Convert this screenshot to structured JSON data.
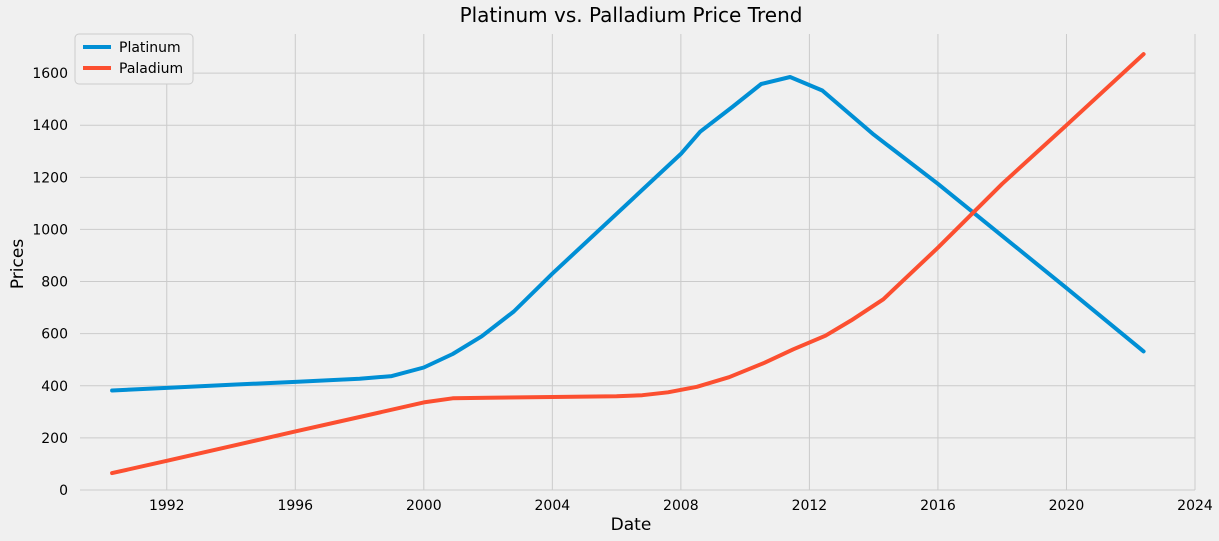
{
  "chart_data": {
    "type": "line",
    "title": "Platinum vs. Palladium Price Trend",
    "xlabel": "Date",
    "ylabel": "Prices",
    "xlim": [
      1989.3,
      2024
    ],
    "ylim": [
      0,
      1750
    ],
    "xticks": [
      1992,
      1996,
      2000,
      2004,
      2008,
      2012,
      2016,
      2020,
      2024
    ],
    "yticks": [
      0,
      200,
      400,
      600,
      800,
      1000,
      1200,
      1400,
      1600
    ],
    "grid": true,
    "legend_position": "top-left",
    "series": [
      {
        "name": "Platinum",
        "color": "#008fd5",
        "points": [
          [
            1990.3,
            382
          ],
          [
            1992.0,
            392
          ],
          [
            1994.0,
            404
          ],
          [
            1996.0,
            415
          ],
          [
            1998.0,
            427
          ],
          [
            1999.0,
            437
          ],
          [
            2000.0,
            470
          ],
          [
            2000.9,
            522
          ],
          [
            2001.8,
            590
          ],
          [
            2002.8,
            685
          ],
          [
            2004.0,
            830
          ],
          [
            2006.0,
            1060
          ],
          [
            2008.0,
            1290
          ],
          [
            2008.6,
            1375
          ],
          [
            2009.6,
            1470
          ],
          [
            2010.5,
            1558
          ],
          [
            2011.4,
            1585
          ],
          [
            2012.4,
            1533
          ],
          [
            2014.0,
            1364
          ],
          [
            2016.0,
            1175
          ],
          [
            2018.0,
            975
          ],
          [
            2020.0,
            775
          ],
          [
            2022.4,
            532
          ]
        ]
      },
      {
        "name": "Paladium",
        "color": "#fc4f30",
        "points": [
          [
            1990.3,
            65
          ],
          [
            1992.0,
            112
          ],
          [
            1994.0,
            168
          ],
          [
            1996.0,
            225
          ],
          [
            1998.0,
            280
          ],
          [
            2000.0,
            336
          ],
          [
            2000.9,
            352
          ],
          [
            2002.0,
            354
          ],
          [
            2004.0,
            357
          ],
          [
            2006.0,
            360
          ],
          [
            2006.8,
            364
          ],
          [
            2007.6,
            375
          ],
          [
            2008.5,
            396
          ],
          [
            2009.5,
            433
          ],
          [
            2010.6,
            488
          ],
          [
            2011.5,
            540
          ],
          [
            2012.5,
            592
          ],
          [
            2013.3,
            651
          ],
          [
            2014.3,
            732
          ],
          [
            2016.0,
            930
          ],
          [
            2018.0,
            1175
          ],
          [
            2020.0,
            1400
          ],
          [
            2022.4,
            1673
          ]
        ]
      }
    ]
  }
}
